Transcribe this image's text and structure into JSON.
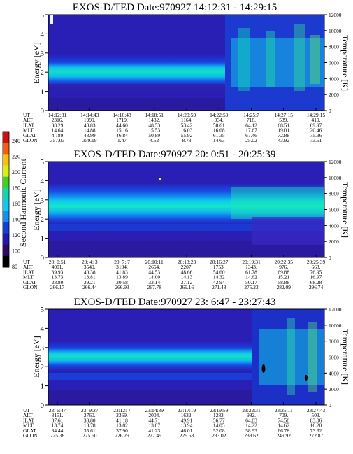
{
  "colorbar": {
    "label": "Second Harmonic Current",
    "ticks": [
      "240",
      "220",
      "200",
      "180",
      "160",
      "140",
      "120",
      "100",
      "80"
    ],
    "colors": [
      "#d01010",
      "#f06010",
      "#f8c010",
      "#d8f010",
      "#40d020",
      "#10d8a8",
      "#10c8f0",
      "#1090f0",
      "#1040d8",
      "#2018b0",
      "#300868",
      "#000000"
    ]
  },
  "panels": [
    {
      "title": "EXOS-D/TED   Date:970927  14:12:31 - 14:29:15",
      "ylabel": "Energy [eV]",
      "y2label": "Temperature [K]",
      "yticks": [
        "0",
        "1",
        "2",
        "3",
        "4",
        "5"
      ],
      "y2ticks": [
        "0",
        "2000",
        "4000",
        "6000",
        "8000",
        "10000",
        "12000"
      ],
      "row_labels": [
        "UT",
        "ALT",
        "ILAT",
        "MLT",
        "GLAT",
        "GLON"
      ],
      "columns": [
        [
          "14:12:31",
          "2316.",
          "38.29",
          "14.64",
          "4.189",
          "357.03"
        ],
        [
          "14:14:43",
          "1999.",
          "40.83",
          "14.88",
          "43.99",
          "359.19"
        ],
        [
          "14:16:43",
          "1719.",
          "44.60",
          "15.16",
          "46.84",
          "1.47"
        ],
        [
          "14:18:51",
          "1432.",
          "48.53",
          "15.53",
          "50.89",
          "4.52"
        ],
        [
          "14:20:59",
          "1164.",
          "53.42",
          "16.03",
          "55.92",
          "8.73"
        ],
        [
          "14:22:59",
          "934.",
          "58.61",
          "16.68",
          "61.35",
          "14.63"
        ],
        [
          "14:25:7",
          "718.",
          "64.12",
          "17.67",
          "67.46",
          "25.02"
        ],
        [
          "14:27:15",
          "539.",
          "68.51",
          "19.01",
          "72.88",
          "43.92"
        ],
        [
          "14:29:15",
          "410.",
          "69.97",
          "20.46",
          "75.36",
          "73.51"
        ]
      ]
    },
    {
      "title": "EXOS-D/TED   Date:970927  20: 0:51 - 20:25:39",
      "ylabel": "Energy [eV]",
      "y2label": "Temperature [K]",
      "yticks": [
        "0",
        "1",
        "2",
        "3",
        "4",
        "5"
      ],
      "y2ticks": [
        "0",
        "2000",
        "4000",
        "6000",
        "8000",
        "10000",
        "12000"
      ],
      "row_labels": [
        "UT",
        "ALT",
        "ILAT",
        "MLT",
        "GLAT",
        "GLON"
      ],
      "columns": [
        [
          "20: 0:51",
          "4001.",
          "39.93",
          "13.73",
          "28.80",
          "266.17"
        ],
        [
          "20: 4: 3",
          "3549.",
          "40.38",
          "13.81",
          "29.21",
          "266.44"
        ],
        [
          "20: 7: 7",
          "3104.",
          "41.83",
          "13.89",
          "30.58",
          "266.93"
        ],
        [
          "20:10:11",
          "2654.",
          "44.53",
          "14.00",
          "33.14",
          "267.78"
        ],
        [
          "20:13:23",
          "2207.",
          "48.66",
          "14.13",
          "37.12",
          "269.16"
        ],
        [
          "20:16:27",
          "1753.",
          "54.60",
          "14.32",
          "42.94",
          "271.48"
        ],
        [
          "20:19:31",
          "1343.",
          "61.78",
          "14.62",
          "50.17",
          "275.23"
        ],
        [
          "20:22:35",
          "976.",
          "69.88",
          "15.21",
          "58.88",
          "282.09"
        ],
        [
          "20:25:39",
          "668.",
          "76.95",
          "16.97",
          "68.28",
          "296.74"
        ]
      ]
    },
    {
      "title": "EXOS-D/TED   Date:970927  23: 6:47 - 23:27:43",
      "ylabel": "Energy [eV]",
      "y2label": "Temperature [K]",
      "yticks": [
        "0",
        "1",
        "2",
        "3",
        "4",
        "5"
      ],
      "y2ticks": [
        "0",
        "2000",
        "4000",
        "6000",
        "8000",
        "10000",
        "12000"
      ],
      "row_labels": [
        "UT",
        "ALT",
        "ILAT",
        "MLT",
        "GLAT",
        "GLON"
      ],
      "columns": [
        [
          "23: 6:47",
          "3151.",
          "37.61",
          "13.74",
          "34.44",
          "225.38"
        ],
        [
          "23: 9:27",
          "2760.",
          "38.80",
          "13.78",
          "35.61",
          "225.60"
        ],
        [
          "23:12: 7",
          "2369.",
          "41.18",
          "13.82",
          "37.90",
          "226.29"
        ],
        [
          "23:14:39",
          "2004.",
          "44.71",
          "13.87",
          "41.23",
          "227.49"
        ],
        [
          "23:17:19",
          "1632.",
          "49.91",
          "13.94",
          "46.01",
          "229.58"
        ],
        [
          "23:19:59",
          "1283.",
          "56.77",
          "14.05",
          "52.08",
          "233.02"
        ],
        [
          "23:22:31",
          "982.",
          "64.83",
          "14.22",
          "58.93",
          "238.62"
        ],
        [
          "23:25:11",
          "709.",
          "74.58",
          "14.62",
          "66.78",
          "249.92"
        ],
        [
          "23:27:43",
          "503.",
          "83.06",
          "16.20",
          "73.32",
          "272.87"
        ]
      ]
    }
  ],
  "chart_data": [
    {
      "type": "heatmap",
      "title": "EXOS-D/TED   Date:970927  14:12:31 - 14:29:15",
      "ylabel": "Energy [eV]",
      "y2label": "Temperature [K]",
      "ylim": [
        0,
        5
      ],
      "y2lim": [
        0,
        12000
      ],
      "colorbar_label": "Second Harmonic Current",
      "colorbar_range": [
        80,
        240
      ],
      "x_times": [
        "14:12:31",
        "14:14:43",
        "14:16:43",
        "14:18:51",
        "14:20:59",
        "14:22:59",
        "14:25:7",
        "14:27:15",
        "14:29:15"
      ],
      "peak_energy_band_eV": [
        1.6,
        2.7
      ]
    },
    {
      "type": "heatmap",
      "title": "EXOS-D/TED   Date:970927  20: 0:51 - 20:25:39",
      "ylabel": "Energy [eV]",
      "y2label": "Temperature [K]",
      "ylim": [
        0,
        5
      ],
      "y2lim": [
        0,
        12000
      ],
      "colorbar_label": "Second Harmonic Current",
      "colorbar_range": [
        80,
        240
      ],
      "x_times": [
        "20: 0:51",
        "20: 4: 3",
        "20: 7: 7",
        "20:10:11",
        "20:13:23",
        "20:16:27",
        "20:19:31",
        "20:22:35",
        "20:25:39"
      ],
      "peak_energy_band_eV": [
        2.2,
        3.3
      ]
    },
    {
      "type": "heatmap",
      "title": "EXOS-D/TED   Date:970927  23: 6:47 - 23:27:43",
      "ylabel": "Energy [eV]",
      "y2label": "Temperature [K]",
      "ylim": [
        0,
        5
      ],
      "y2lim": [
        0,
        12000
      ],
      "colorbar_label": "Second Harmonic Current",
      "colorbar_range": [
        80,
        240
      ],
      "x_times": [
        "23: 6:47",
        "23: 9:27",
        "23:12: 7",
        "23:14:39",
        "23:17:19",
        "23:19:59",
        "23:22:31",
        "23:25:11",
        "23:27:43"
      ],
      "peak_energy_band_eV": [
        1.8,
        2.6
      ]
    }
  ]
}
